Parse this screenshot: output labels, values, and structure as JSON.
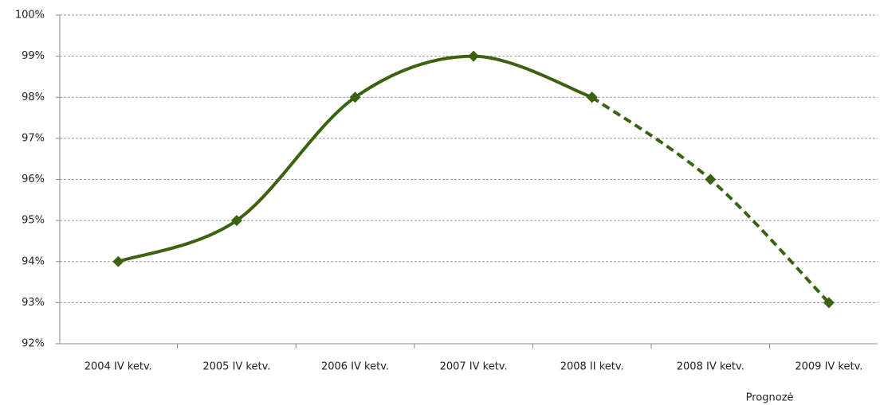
{
  "chart_data": {
    "type": "line",
    "categories": [
      "2004 IV ketv.",
      "2005 IV ketv.",
      "2006 IV ketv.",
      "2007 IV ketv.",
      "2008 II ketv.",
      "2008 IV ketv.",
      "2009 IV ketv."
    ],
    "series": [
      {
        "color": "#3a620f",
        "dashed": false,
        "values": [
          94,
          95,
          98,
          99,
          98,
          null,
          null
        ]
      },
      {
        "name": "Prognozė",
        "color": "#3a620f",
        "dashed": true,
        "values": [
          null,
          null,
          null,
          null,
          98,
          96,
          93
        ]
      }
    ],
    "ylim": [
      92,
      100
    ],
    "yticks": [
      {
        "value": 92,
        "label": "92%"
      },
      {
        "value": 93,
        "label": "93%"
      },
      {
        "value": 94,
        "label": "94%"
      },
      {
        "value": 95,
        "label": "95%"
      },
      {
        "value": 96,
        "label": "96%"
      },
      {
        "value": 97,
        "label": "97%"
      },
      {
        "value": 98,
        "label": "98%"
      },
      {
        "value": 99,
        "label": "99%"
      },
      {
        "value": 100,
        "label": "100%"
      }
    ],
    "grid": true
  }
}
